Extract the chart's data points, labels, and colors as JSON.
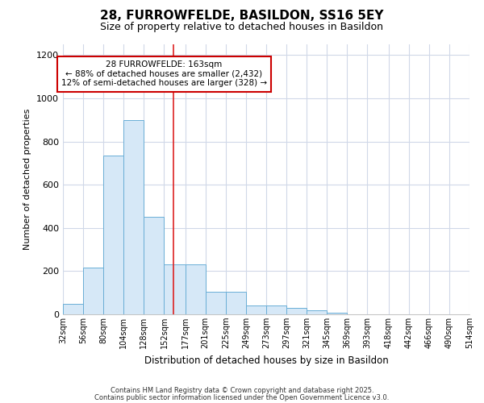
{
  "title1": "28, FURROWFELDE, BASILDON, SS16 5EY",
  "title2": "Size of property relative to detached houses in Basildon",
  "xlabel": "Distribution of detached houses by size in Basildon",
  "ylabel": "Number of detached properties",
  "bin_edges": [
    32,
    56,
    80,
    104,
    128,
    152,
    177,
    201,
    225,
    249,
    273,
    297,
    321,
    345,
    369,
    393,
    418,
    442,
    466,
    490,
    514
  ],
  "bar_heights": [
    50,
    215,
    735,
    900,
    450,
    232,
    232,
    105,
    105,
    42,
    42,
    28,
    20,
    8,
    0,
    0,
    0,
    0,
    0,
    0
  ],
  "bar_color": "#d6e8f7",
  "bar_edge_color": "#6aaed6",
  "bg_color": "#ffffff",
  "grid_color": "#d0d8e8",
  "vline_x": 163,
  "vline_color": "#dd2222",
  "annotation_title": "28 FURROWFELDE: 163sqm",
  "annotation_line1": "← 88% of detached houses are smaller (2,432)",
  "annotation_line2": "12% of semi-detached houses are larger (328) →",
  "annotation_box_color": "#cc0000",
  "ylim": [
    0,
    1250
  ],
  "yticks": [
    0,
    200,
    400,
    600,
    800,
    1000,
    1200
  ],
  "footnote1": "Contains HM Land Registry data © Crown copyright and database right 2025.",
  "footnote2": "Contains public sector information licensed under the Open Government Licence v3.0."
}
